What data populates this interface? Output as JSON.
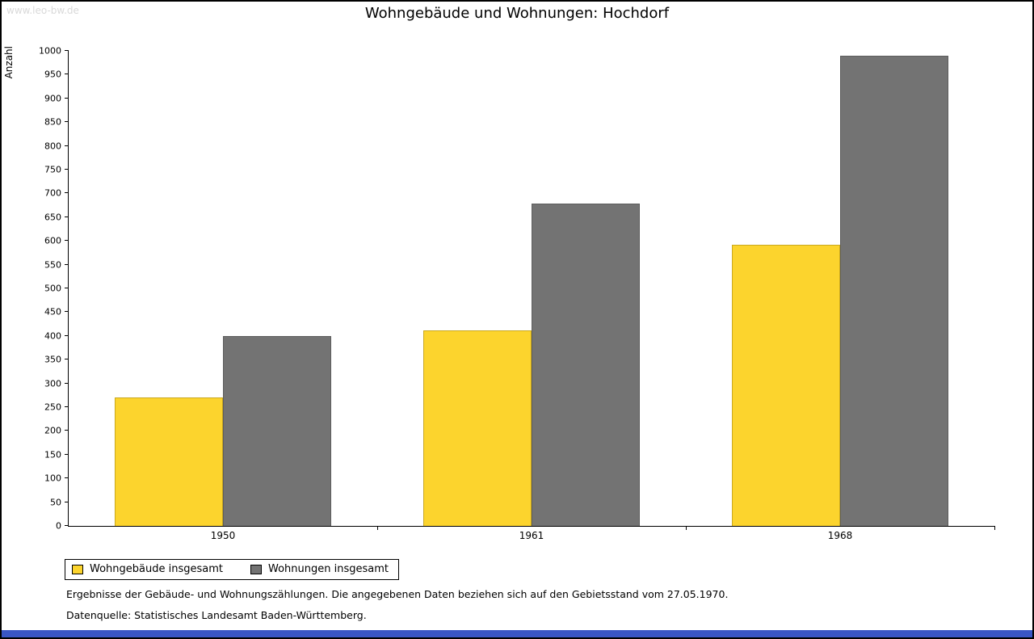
{
  "page": {
    "watermark": "www.leo-bw.de",
    "footer_strip_color": "#3a56c5"
  },
  "chart_data": {
    "type": "bar",
    "title": "Wohngebäude und Wohnungen: Hochdorf",
    "ylabel": "Anzahl",
    "xlabel": "",
    "categories": [
      "1950",
      "1961",
      "1968"
    ],
    "series": [
      {
        "name": "Wohngebäude insgesamt",
        "color": "#fcd42d",
        "border_color": "#c9a81f",
        "values": [
          270,
          412,
          592
        ]
      },
      {
        "name": "Wohnungen insgesamt",
        "color": "#737373",
        "border_color": "#5d5d5d",
        "values": [
          400,
          678,
          990
        ]
      }
    ],
    "ylim": [
      0,
      1000
    ],
    "ytick_step": 50,
    "grid": false,
    "legend_position": "bottom-left"
  },
  "notes": {
    "line1": "Ergebnisse der Gebäude- und Wohnungszählungen. Die angegebenen Daten beziehen sich auf den Gebietsstand vom 27.05.1970.",
    "line2": "Datenquelle: Statistisches Landesamt Baden-Württemberg."
  }
}
